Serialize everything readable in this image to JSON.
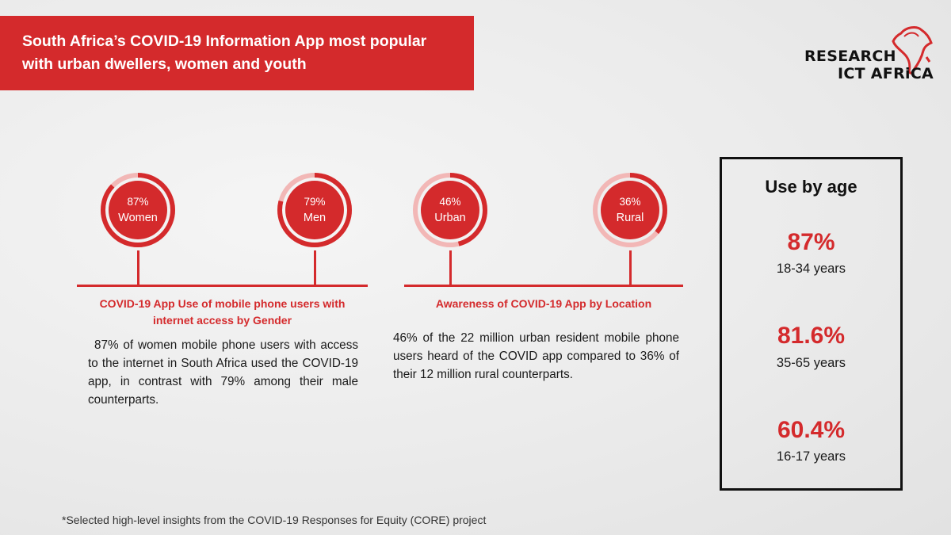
{
  "title": {
    "line1": "South Africa’s COVID-19 Information App most popular",
    "line2": "with urban dwellers, women and youth"
  },
  "logo": {
    "line1": "RESEARCH",
    "line2": "ICT AFRiCA"
  },
  "colors": {
    "accent": "#d42a2c",
    "ring_track": "#f2b7b6",
    "text": "#1a1a1a"
  },
  "rings": [
    {
      "pct_label": "87%",
      "label": "Women",
      "value": 87
    },
    {
      "pct_label": "79%",
      "label": "Men",
      "value": 79
    },
    {
      "pct_label": "46%",
      "label": "Urban",
      "value": 46
    },
    {
      "pct_label": "36%",
      "label": "Rural",
      "value": 36
    }
  ],
  "gender": {
    "caption_line1": "COVID-19 App Use of mobile phone users with",
    "caption_line2": "internet access by Gender",
    "body": "87% of women mobile phone users with access to the internet in South Africa used the COVID-19 app, in contrast with 79% among their male counterparts."
  },
  "location": {
    "caption": "Awareness of COVID-19 App by Location",
    "body": "46% of the 22 million urban resident mobile phone users heard of the COVID app compared to 36% of their 12 million rural counterparts."
  },
  "age": {
    "title": "Use by age",
    "items": [
      {
        "pct": "87%",
        "range": "18-34 years"
      },
      {
        "pct": "81.6%",
        "range": "35-65 years"
      },
      {
        "pct": "60.4%",
        "range": "16-17 years"
      }
    ]
  },
  "footnote": "*Selected high-level insights from the COVID-19 Responses for Equity (CORE) project"
}
